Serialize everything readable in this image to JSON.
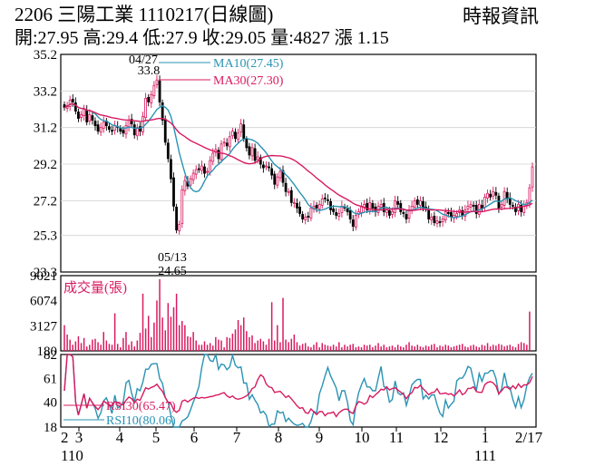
{
  "header": {
    "title": "2206  三陽工業 1110217(日線圖)",
    "quote": "開:27.95 高:29.4 低:27.9 收:29.05 量:4827 漲 1.15",
    "source": "時報資訊"
  },
  "chart_data": [
    {
      "type": "candlestick",
      "title": "2206 三陽工業 1110217(日線圖)",
      "ylim": [
        23.3,
        35.2
      ],
      "y_ticks": [
        "35.2",
        "33.2",
        "31.2",
        "29.2",
        "27.2",
        "25.3",
        "23.3"
      ],
      "annotations": [
        {
          "label": "04/27",
          "value": "33.8"
        },
        {
          "label": "05/13",
          "value": "24.65"
        }
      ],
      "legend": [
        {
          "name": "MA10(27.45)",
          "color": "#2a93b4"
        },
        {
          "name": "MA30(27.30)",
          "color": "#d81b60"
        }
      ],
      "close_approx": [
        32.3,
        32.4,
        32.7,
        32.6,
        32.1,
        31.7,
        31.9,
        32.2,
        31.5,
        31.9,
        31.6,
        31.3,
        31.0,
        31.2,
        31.5,
        31.3,
        31.1,
        31.0,
        31.3,
        31.2,
        31.0,
        30.9,
        31.3,
        31.6,
        31.4,
        30.8,
        31.2,
        31.0,
        31.8,
        32.8,
        32.6,
        33.0,
        33.5,
        33.8,
        32.6,
        31.6,
        30.4,
        29.5,
        28.4,
        26.9,
        25.6,
        25.9,
        27.8,
        28.3,
        28.0,
        28.4,
        28.7,
        28.9,
        28.9,
        29.1,
        28.7,
        28.8,
        29.4,
        29.8,
        30.0,
        29.5,
        30.3,
        30.4,
        30.2,
        30.7,
        31.0,
        30.6,
        30.9,
        31.4,
        30.6,
        30.1,
        29.7,
        30.1,
        29.4,
        29.6,
        29.2,
        29.0,
        29.1,
        29.0,
        28.6,
        28.1,
        28.5,
        28.8,
        28.2,
        27.7,
        27.7,
        27.1,
        27.1,
        26.8,
        26.5,
        26.2,
        26.3,
        26.3,
        26.8,
        26.9,
        26.8,
        27.0,
        27.3,
        27.3,
        27.2,
        26.7,
        26.6,
        26.4,
        26.5,
        26.9,
        26.8,
        26.6,
        26.2,
        25.8,
        26.4,
        26.6,
        26.9,
        27.0,
        26.7,
        27.1,
        26.8,
        26.6,
        26.9,
        27.0,
        26.6,
        26.7,
        26.4,
        26.6,
        27.2,
        27.0,
        26.6,
        26.5,
        26.2,
        26.7,
        26.9,
        27.2,
        27.0,
        27.2,
        26.8,
        26.8,
        26.2,
        26.3,
        26.0,
        26.1,
        26.0,
        26.2,
        26.6,
        26.5,
        26.3,
        26.4,
        26.5,
        26.7,
        26.4,
        26.7,
        26.9,
        27.0,
        26.9,
        26.5,
        27.0,
        26.8,
        27.4,
        27.6,
        27.4,
        27.7,
        27.5,
        26.8,
        27.0,
        27.7,
        27.3,
        27.0,
        26.9,
        26.6,
        27.0,
        26.6,
        26.9,
        27.1,
        27.9,
        29.05
      ]
    },
    {
      "type": "bar",
      "title": "成交量(張)",
      "ylim": [
        180,
        9021
      ],
      "y_ticks": [
        "9021",
        "6074",
        "3127",
        "180"
      ],
      "values_approx": [
        3200,
        2100,
        1500,
        900,
        1300,
        1900,
        1100,
        1700,
        700,
        900,
        1500,
        1600,
        1200,
        900,
        2400,
        1400,
        1000,
        900,
        4600,
        1000,
        600,
        1700,
        2400,
        900,
        1300,
        700,
        1400,
        2300,
        6900,
        2800,
        4300,
        1800,
        3500,
        6100,
        8600,
        4100,
        2600,
        5800,
        4200,
        5300,
        6900,
        3200,
        3700,
        3200,
        1900,
        1800,
        2400,
        1400,
        900,
        900,
        1300,
        900,
        1100,
        800,
        1800,
        1500,
        1400,
        600,
        1800,
        1700,
        2200,
        2700,
        3800,
        3200,
        4100,
        2500,
        1800,
        2000,
        1100,
        1400,
        1600,
        1300,
        900,
        1600,
        5900,
        1400,
        3200,
        1200,
        6400,
        1500,
        1200,
        1600,
        2100,
        1200,
        800,
        1000,
        1100,
        700,
        600,
        900,
        1200,
        600,
        1100,
        900,
        800,
        700,
        900,
        700,
        1200,
        600,
        900,
        700,
        900,
        1000,
        600,
        700,
        600,
        900,
        800,
        900,
        600,
        800,
        1100,
        700,
        900,
        600,
        700,
        800,
        600,
        900,
        700,
        600,
        900,
        1200,
        800,
        700,
        900,
        700,
        600,
        800,
        700,
        900,
        1000,
        600,
        800,
        700,
        900,
        800,
        600,
        700,
        800,
        900,
        1000,
        700,
        600,
        800,
        900,
        700,
        600,
        900,
        800,
        1100,
        700,
        900,
        800,
        1000,
        900,
        700,
        800,
        900,
        700,
        600,
        1000,
        1200,
        1100,
        900,
        4800
      ]
    },
    {
      "type": "line",
      "title": "RSI",
      "ylim": [
        18,
        82
      ],
      "y_ticks": [
        "82",
        "61",
        "40",
        "18"
      ],
      "series": [
        {
          "name": "RSI30(65.47)",
          "color": "#d81b60"
        },
        {
          "name": "RSI10(80.06)",
          "color": "#2a93b4"
        }
      ]
    }
  ],
  "x_axis": {
    "ticks": [
      {
        "label": "2",
        "sub": "110"
      },
      {
        "label": "3",
        "sub": ""
      },
      {
        "label": "4",
        "sub": ""
      },
      {
        "label": "5",
        "sub": ""
      },
      {
        "label": "6",
        "sub": ""
      },
      {
        "label": "7",
        "sub": ""
      },
      {
        "label": "8",
        "sub": ""
      },
      {
        "label": "9",
        "sub": ""
      },
      {
        "label": "10",
        "sub": ""
      },
      {
        "label": "11",
        "sub": ""
      },
      {
        "label": "12",
        "sub": ""
      },
      {
        "label": "1",
        "sub": "111"
      },
      {
        "label": "2/17",
        "sub": ""
      }
    ]
  },
  "colors": {
    "up": "#d81b60",
    "down": "#000000",
    "ma10": "#2a93b4",
    "ma30": "#d81b60"
  }
}
